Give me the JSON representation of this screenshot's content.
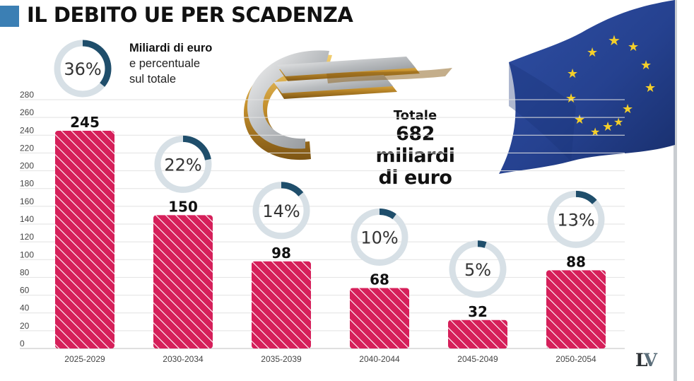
{
  "title": "IL DEBITO UE PER SCADENZA",
  "legend": {
    "line1": "Miliardi di euro",
    "line2": "e percentuale",
    "line3": "sul totale",
    "example_percent": "36%",
    "example_share": 36
  },
  "total": {
    "label": "Totale",
    "value_line1": "682 miliardi",
    "value_line2": "di euro"
  },
  "logo": {
    "l": "L",
    "v": "V"
  },
  "colors": {
    "bar": "#d61f5a",
    "ring_track": "#d7e0e6",
    "ring_fill": "#1f4e6b",
    "grid": "#e2e2e2",
    "accent": "#3b7fb4"
  },
  "chart_data": {
    "type": "bar",
    "title": "IL DEBITO UE PER SCADENZA",
    "categories": [
      "2025-2029",
      "2030-2034",
      "2035-2039",
      "2040-2044",
      "2045-2049",
      "2050-2054"
    ],
    "values": [
      245,
      150,
      98,
      68,
      32,
      88
    ],
    "value_labels": [
      "245",
      "150",
      "98",
      "68",
      "32",
      "88"
    ],
    "percent_labels": [
      "36%",
      "22%",
      "14%",
      "10%",
      "5%",
      "13%"
    ],
    "percent_values": [
      36,
      22,
      14,
      10,
      5,
      13
    ],
    "y_ticks": [
      0,
      20,
      40,
      60,
      80,
      100,
      120,
      140,
      160,
      180,
      200,
      220,
      240,
      260,
      280
    ],
    "ylim": [
      0,
      280
    ],
    "unit": "Miliardi di euro",
    "grid": true
  }
}
